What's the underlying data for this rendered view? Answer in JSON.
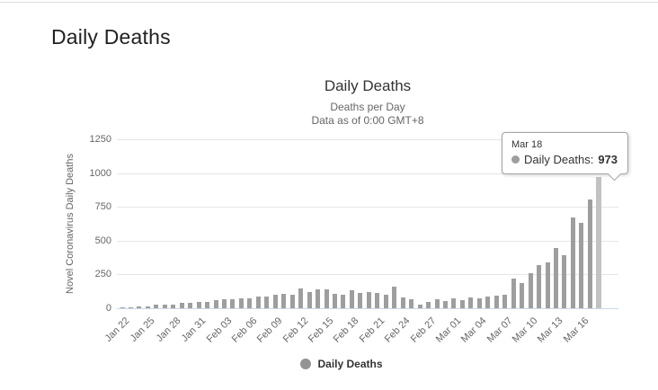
{
  "page": {
    "title": "Daily Deaths"
  },
  "chart": {
    "title": "Daily Deaths",
    "subtitle_line1": "Deaths per Day",
    "subtitle_line2": "Data as of 0:00 GMT+8",
    "y_axis_title": "Novel Coronavirus Daily Deaths",
    "legend_label": "Daily Deaths"
  },
  "tooltip": {
    "date": "Mar 18",
    "series_label": "Daily Deaths:",
    "value": "973"
  },
  "colors": {
    "bar": "#9e9e9e",
    "bar_hover": "#c2c2c2",
    "gridline": "#e6e6e6",
    "axis_line": "#ccd6eb",
    "title_text": "#333333",
    "muted_text": "#666666",
    "tooltip_border": "#a3a3a3",
    "legend_dot": "#939393"
  },
  "chart_data": {
    "type": "bar",
    "title": "Daily Deaths",
    "subtitle": [
      "Deaths per Day",
      "Data as of 0:00 GMT+8"
    ],
    "xlabel": "",
    "ylabel": "Novel Coronavirus Daily Deaths",
    "ylim": [
      0,
      1250
    ],
    "yticks": [
      0,
      250,
      500,
      750,
      1000,
      1250
    ],
    "grid": true,
    "legend_position": "bottom",
    "legend": [
      "Daily Deaths"
    ],
    "x_tick_interval": 3,
    "categories": [
      "Jan 22",
      "Jan 23",
      "Jan 24",
      "Jan 25",
      "Jan 26",
      "Jan 27",
      "Jan 28",
      "Jan 29",
      "Jan 30",
      "Jan 31",
      "Feb 01",
      "Feb 02",
      "Feb 03",
      "Feb 04",
      "Feb 05",
      "Feb 06",
      "Feb 07",
      "Feb 08",
      "Feb 09",
      "Feb 10",
      "Feb 11",
      "Feb 12",
      "Feb 13",
      "Feb 14",
      "Feb 15",
      "Feb 16",
      "Feb 17",
      "Feb 18",
      "Feb 19",
      "Feb 20",
      "Feb 21",
      "Feb 22",
      "Feb 23",
      "Feb 24",
      "Feb 25",
      "Feb 26",
      "Feb 27",
      "Feb 28",
      "Feb 29",
      "Mar 01",
      "Mar 02",
      "Mar 03",
      "Mar 04",
      "Mar 05",
      "Mar 06",
      "Mar 07",
      "Mar 08",
      "Mar 09",
      "Mar 10",
      "Mar 11",
      "Mar 12",
      "Mar 13",
      "Mar 14",
      "Mar 15",
      "Mar 16",
      "Mar 17",
      "Mar 18"
    ],
    "values": [
      9,
      8,
      16,
      15,
      24,
      26,
      26,
      38,
      43,
      46,
      45,
      58,
      64,
      66,
      73,
      73,
      86,
      89,
      97,
      108,
      97,
      146,
      121,
      143,
      142,
      105,
      98,
      136,
      116,
      118,
      112,
      100,
      158,
      81,
      64,
      29,
      45,
      68,
      53,
      75,
      59,
      81,
      75,
      86,
      92,
      97,
      217,
      188,
      257,
      322,
      342,
      443,
      393,
      671,
      630,
      807,
      973
    ],
    "hover": {
      "category": "Mar 18",
      "value": 973,
      "index": 56
    }
  }
}
